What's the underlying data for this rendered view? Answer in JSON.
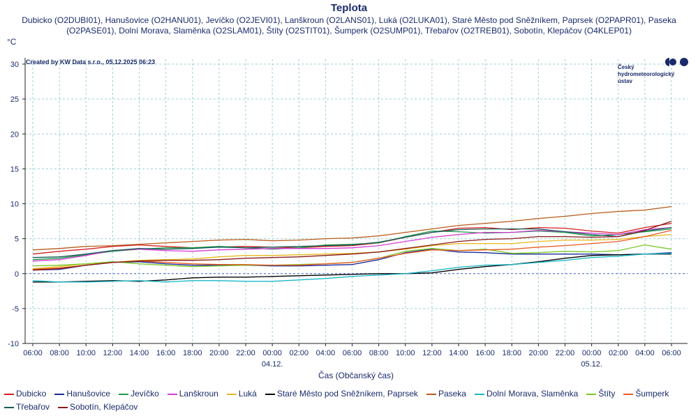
{
  "header": {
    "title": "Teplota",
    "subtitle": "Dubicko (O2DUBI01), Hanušovice (O2HANU01), Jevíčko (O2JEVI01), Lanškroun (O2LANS01), Luká (O2LUKA01), Staré Město pod Sněžníkem, Paprsek (O2PAPR01), Paseka (O2PASE01), Dolní Morava, Slaměnka (O2SLAM01), Štíty (O2STIT01), Šumperk (O2SUMP01), Třebařov (O2TREB01), Sobotín, Klepáčov (O4KLEP01)"
  },
  "credit": "Created by KW Data s.r.o., 05.12.2025 06:23",
  "logo": {
    "icon": "chmi-logo-icon",
    "line1": "Český",
    "line2": "hydrometeorologický",
    "line3": "ústav"
  },
  "colors": {
    "grid": "#9ccfd8",
    "zero_line": "#3a55c8",
    "frame": "#222222"
  },
  "chart_data": {
    "type": "line",
    "title": "Teplota",
    "ylabel": "°C",
    "xlabel": "Čas (Občanský čas)",
    "ylim": [
      -10,
      30
    ],
    "yticks": [
      -10,
      -5,
      0,
      5,
      10,
      15,
      20,
      25,
      30
    ],
    "xlim": [
      6,
      54.5
    ],
    "xticks": [
      6,
      8,
      10,
      12,
      14,
      16,
      18,
      20,
      22,
      24,
      26,
      28,
      30,
      32,
      34,
      36,
      38,
      40,
      42,
      44,
      46,
      48,
      50,
      52,
      54
    ],
    "xtick_labels": [
      "06:00",
      "08:00",
      "10:00",
      "12:00",
      "14:00",
      "16:00",
      "18:00",
      "20:00",
      "22:00",
      "00:00",
      "02:00",
      "04:00",
      "06:00",
      "08:00",
      "10:00",
      "12:00",
      "14:00",
      "16:00",
      "18:00",
      "20:00",
      "22:00",
      "00:00",
      "02:00",
      "04:00",
      "06:00"
    ],
    "date_labels": [
      {
        "x": 24,
        "label": "04.12."
      },
      {
        "x": 48,
        "label": "05.12."
      }
    ],
    "grid": true,
    "legend_position": "bottom",
    "series": [
      {
        "name": "Dubicko",
        "color": "#d42020",
        "x": [
          6,
          8,
          10,
          12,
          14,
          16,
          18,
          20,
          22,
          24,
          26,
          28,
          30,
          32,
          34,
          36,
          38,
          40,
          42,
          44,
          46,
          48,
          50,
          52,
          54
        ],
        "y": [
          2.8,
          3.2,
          3.5,
          3.9,
          4.1,
          3.9,
          3.7,
          3.8,
          3.9,
          3.8,
          3.7,
          3.9,
          4.0,
          4.4,
          5.2,
          5.9,
          6.5,
          6.6,
          6.3,
          6.6,
          6.5,
          6.1,
          5.8,
          6.6,
          7.2
        ]
      },
      {
        "name": "Hanušovice",
        "color": "#1a2a9a",
        "x": [
          6,
          8,
          10,
          12,
          14,
          16,
          18,
          20,
          22,
          24,
          26,
          28,
          30,
          32,
          34,
          36,
          38,
          40,
          42,
          44,
          46,
          48,
          50,
          52,
          54
        ],
        "y": [
          0.5,
          0.6,
          1.2,
          1.6,
          1.7,
          1.4,
          1.2,
          1.2,
          1.2,
          1.1,
          1.1,
          1.2,
          1.3,
          2.0,
          3.0,
          3.5,
          3.1,
          3.0,
          2.8,
          2.8,
          2.8,
          2.8,
          2.7,
          2.8,
          3.0
        ]
      },
      {
        "name": "Jevíčko",
        "color": "#1f9a4a",
        "x": [
          6,
          8,
          10,
          12,
          14,
          16,
          18,
          20,
          22,
          24,
          26,
          28,
          30,
          32,
          34,
          36,
          38,
          40,
          42,
          44,
          46,
          48,
          50,
          52,
          54
        ],
        "y": [
          2.0,
          2.2,
          2.7,
          3.2,
          3.5,
          3.7,
          3.7,
          3.9,
          3.7,
          3.5,
          3.7,
          4.1,
          4.2,
          4.4,
          5.3,
          6.1,
          6.0,
          5.8,
          5.9,
          6.1,
          5.9,
          5.4,
          5.6,
          6.0,
          6.4
        ]
      },
      {
        "name": "Lanškroun",
        "color": "#d63ad6",
        "x": [
          6,
          8,
          10,
          12,
          14,
          16,
          18,
          20,
          22,
          24,
          26,
          28,
          30,
          32,
          34,
          36,
          38,
          40,
          42,
          44,
          46,
          48,
          50,
          52,
          54
        ],
        "y": [
          1.8,
          2.0,
          2.6,
          3.3,
          3.5,
          3.3,
          3.2,
          3.4,
          3.5,
          3.6,
          3.6,
          3.6,
          3.7,
          4.0,
          4.6,
          5.2,
          5.6,
          5.9,
          5.9,
          6.2,
          6.0,
          5.8,
          5.6,
          6.3,
          6.6
        ]
      },
      {
        "name": "Luká",
        "color": "#e6b81c",
        "x": [
          6,
          8,
          10,
          12,
          14,
          16,
          18,
          20,
          22,
          24,
          26,
          28,
          30,
          32,
          34,
          36,
          38,
          40,
          42,
          44,
          46,
          48,
          50,
          52,
          54
        ],
        "y": [
          0.7,
          1.0,
          1.4,
          1.6,
          1.9,
          2.0,
          2.1,
          2.4,
          2.6,
          2.6,
          2.7,
          2.8,
          2.9,
          3.1,
          3.5,
          4.0,
          4.3,
          4.3,
          4.3,
          4.6,
          4.8,
          4.8,
          4.9,
          5.3,
          5.6
        ]
      },
      {
        "name": "Staré Město pod Sněžníkem, Paprsek",
        "color": "#000000",
        "x": [
          6,
          8,
          10,
          12,
          14,
          16,
          18,
          20,
          22,
          24,
          26,
          28,
          30,
          32,
          34,
          36,
          38,
          40,
          42,
          44,
          46,
          48,
          50,
          52,
          54
        ],
        "y": [
          -1.2,
          -1.2,
          -1.1,
          -1.0,
          -1.1,
          -0.9,
          -0.6,
          -0.5,
          -0.5,
          -0.4,
          -0.3,
          -0.2,
          -0.1,
          0.0,
          0.0,
          0.1,
          0.6,
          1.0,
          1.3,
          1.7,
          2.2,
          2.6,
          2.7,
          2.8,
          2.8
        ]
      },
      {
        "name": "Paseka",
        "color": "#b85a18",
        "x": [
          6,
          8,
          10,
          12,
          14,
          16,
          18,
          20,
          22,
          24,
          26,
          28,
          30,
          32,
          34,
          36,
          38,
          40,
          42,
          44,
          46,
          48,
          50,
          52,
          54
        ],
        "y": [
          3.4,
          3.6,
          3.9,
          4.0,
          4.2,
          4.4,
          4.6,
          4.8,
          4.9,
          4.7,
          4.8,
          5.0,
          5.1,
          5.4,
          5.9,
          6.4,
          6.9,
          7.2,
          7.5,
          7.9,
          8.2,
          8.6,
          8.9,
          9.1,
          9.6
        ]
      },
      {
        "name": "Dolní Morava, Slaměnka",
        "color": "#1ab8c8",
        "x": [
          6,
          8,
          10,
          12,
          14,
          16,
          18,
          20,
          22,
          24,
          26,
          28,
          30,
          32,
          34,
          36,
          38,
          40,
          42,
          44,
          46,
          48,
          50,
          52,
          54
        ],
        "y": [
          -1.0,
          -1.2,
          -1.2,
          -1.1,
          -1.0,
          -1.2,
          -1.0,
          -1.0,
          -1.1,
          -1.1,
          -0.9,
          -0.7,
          -0.4,
          -0.2,
          0.0,
          0.4,
          0.9,
          1.2,
          1.3,
          1.6,
          1.9,
          2.3,
          2.5,
          2.8,
          2.9
        ]
      },
      {
        "name": "Štíty",
        "color": "#7ac828",
        "x": [
          6,
          8,
          10,
          12,
          14,
          16,
          18,
          20,
          22,
          24,
          26,
          28,
          30,
          32,
          34,
          36,
          38,
          40,
          42,
          44,
          46,
          48,
          50,
          52,
          54
        ],
        "y": [
          1.1,
          1.2,
          1.4,
          1.7,
          1.4,
          1.2,
          1.0,
          1.1,
          1.2,
          1.2,
          1.3,
          1.4,
          1.6,
          2.2,
          3.2,
          3.6,
          3.3,
          3.5,
          2.9,
          3.0,
          3.2,
          3.1,
          3.3,
          4.1,
          3.5
        ]
      },
      {
        "name": "Šumperk",
        "color": "#e85a20",
        "x": [
          6,
          8,
          10,
          12,
          14,
          16,
          18,
          20,
          22,
          24,
          26,
          28,
          30,
          32,
          34,
          36,
          38,
          40,
          42,
          44,
          46,
          48,
          50,
          52,
          54
        ],
        "y": [
          0.6,
          0.8,
          1.2,
          1.6,
          1.8,
          1.6,
          1.4,
          1.3,
          1.3,
          1.2,
          1.2,
          1.4,
          1.6,
          2.2,
          2.9,
          3.4,
          3.3,
          3.4,
          3.5,
          3.8,
          4.0,
          4.3,
          4.6,
          5.3,
          6.2
        ]
      },
      {
        "name": "Třebařov",
        "color": "#1a5a5a",
        "x": [
          6,
          8,
          10,
          12,
          14,
          16,
          18,
          20,
          22,
          24,
          26,
          28,
          30,
          32,
          34,
          36,
          38,
          40,
          42,
          44,
          46,
          48,
          50,
          52,
          54
        ],
        "y": [
          2.3,
          2.4,
          2.8,
          3.3,
          3.6,
          3.5,
          3.6,
          3.8,
          3.7,
          3.8,
          3.9,
          4.0,
          4.1,
          4.5,
          5.2,
          5.9,
          6.3,
          6.4,
          6.4,
          6.4,
          6.0,
          5.6,
          5.3,
          6.1,
          6.6
        ]
      },
      {
        "name": "Sobotín, Klepáčov",
        "color": "#8a1a1a",
        "x": [
          6,
          8,
          10,
          12,
          14,
          16,
          18,
          20,
          22,
          24,
          26,
          28,
          30,
          32,
          34,
          36,
          38,
          40,
          42,
          44,
          46,
          48,
          50,
          52,
          54
        ],
        "y": [
          0.5,
          0.7,
          1.2,
          1.6,
          1.8,
          1.9,
          1.9,
          2.0,
          2.2,
          2.3,
          2.4,
          2.6,
          2.8,
          3.1,
          3.6,
          4.1,
          4.6,
          4.9,
          5.0,
          5.3,
          5.3,
          5.2,
          5.3,
          6.2,
          7.5
        ]
      }
    ]
  }
}
